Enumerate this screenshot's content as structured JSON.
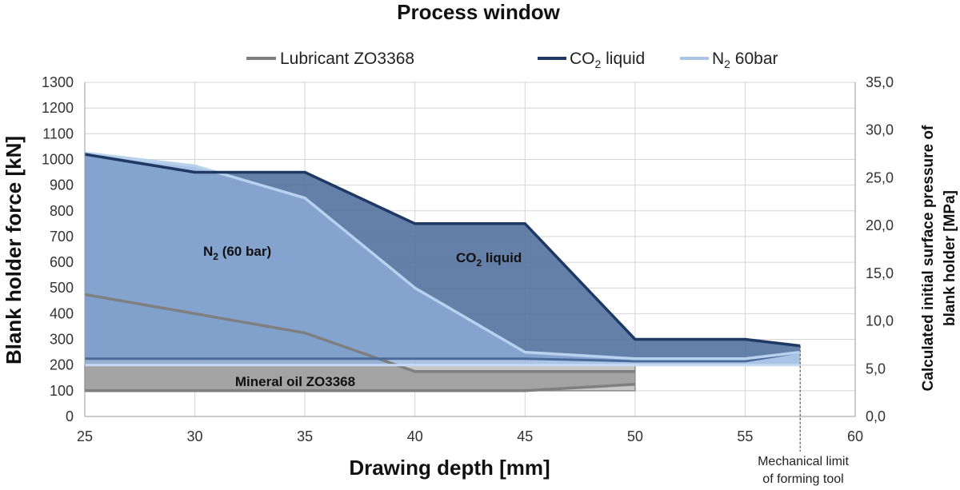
{
  "chart_data": {
    "type": "area",
    "title": "Process window",
    "xlabel": "Drawing depth [mm]",
    "ylabel": "Blank holder force [kN]",
    "y2label_line1": "Calculated initial surface pressure of",
    "y2label_line2": "blank holder [MPa]",
    "xlim": [
      25,
      60
    ],
    "ylim": [
      0,
      1300
    ],
    "y2lim": [
      0,
      35
    ],
    "xticks": [
      "25",
      "30",
      "35",
      "40",
      "45",
      "50",
      "55",
      "60"
    ],
    "yticks": [
      "0",
      "100",
      "200",
      "300",
      "400",
      "500",
      "600",
      "700",
      "800",
      "900",
      "1000",
      "1100",
      "1200",
      "1300"
    ],
    "y2ticks": [
      "0,0",
      "5,0",
      "10,0",
      "15,0",
      "20,0",
      "25,0",
      "30,0",
      "35,0"
    ],
    "grid": true,
    "legend_position": "top",
    "legend": [
      {
        "label": "Lubricant ZO3368",
        "color": "#7f7f7f"
      },
      {
        "label_main": "CO",
        "label_sub": "2",
        "label_rest": " liquid",
        "color": "#1f3864"
      },
      {
        "label_main": "N",
        "label_sub": "2",
        "label_rest": " 60bar",
        "color": "#a9c6e8"
      }
    ],
    "regions": [
      {
        "name": "Lubricant ZO3368",
        "upper": [
          [
            25,
            475
          ],
          [
            30,
            400
          ],
          [
            35,
            325
          ],
          [
            40,
            175
          ],
          [
            45,
            175
          ],
          [
            50,
            175
          ]
        ],
        "lower": [
          [
            25,
            100
          ],
          [
            30,
            100
          ],
          [
            35,
            100
          ],
          [
            40,
            100
          ],
          [
            45,
            100
          ],
          [
            50,
            125
          ]
        ],
        "fill": "#9a9a9a",
        "stroke": "#7f7f7f"
      },
      {
        "name": "CO2 liquid",
        "upper": [
          [
            25,
            1020
          ],
          [
            30,
            950
          ],
          [
            35,
            950
          ],
          [
            40,
            750
          ],
          [
            45,
            750
          ],
          [
            50,
            300
          ],
          [
            55,
            300
          ],
          [
            57.5,
            275
          ]
        ],
        "lower": [
          [
            25,
            225
          ],
          [
            30,
            225
          ],
          [
            35,
            225
          ],
          [
            40,
            225
          ],
          [
            45,
            225
          ],
          [
            50,
            215
          ],
          [
            55,
            215
          ],
          [
            57.5,
            250
          ]
        ],
        "fill": "#4e6d9c",
        "stroke": "#1f3864"
      },
      {
        "name": "N2 60bar",
        "upper": [
          [
            25,
            1025
          ],
          [
            30,
            975
          ],
          [
            35,
            850
          ],
          [
            40,
            500
          ],
          [
            45,
            250
          ],
          [
            50,
            225
          ],
          [
            55,
            225
          ],
          [
            57.5,
            250
          ]
        ],
        "lower": [
          [
            25,
            200
          ],
          [
            30,
            200
          ],
          [
            35,
            200
          ],
          [
            40,
            200
          ],
          [
            45,
            200
          ],
          [
            50,
            200
          ],
          [
            55,
            200
          ],
          [
            57.5,
            200
          ]
        ],
        "fill": "#8fb0dc",
        "stroke": "#a9c6e8"
      }
    ],
    "mineral_band": {
      "x": [
        25,
        50
      ],
      "y": [
        100,
        200
      ],
      "fill": "#c8c8c8"
    },
    "labels": {
      "mineral": "Mineral oil ZO3368",
      "n2_main": "N",
      "n2_sub": "2",
      "n2_rest": " (60 bar)",
      "co2_main": "CO",
      "co2_sub": "2",
      "co2_rest": " liquid",
      "limit_line1": "Mechanical limit",
      "limit_line2": "of forming tool"
    },
    "mechanical_limit_x": 57.5
  }
}
